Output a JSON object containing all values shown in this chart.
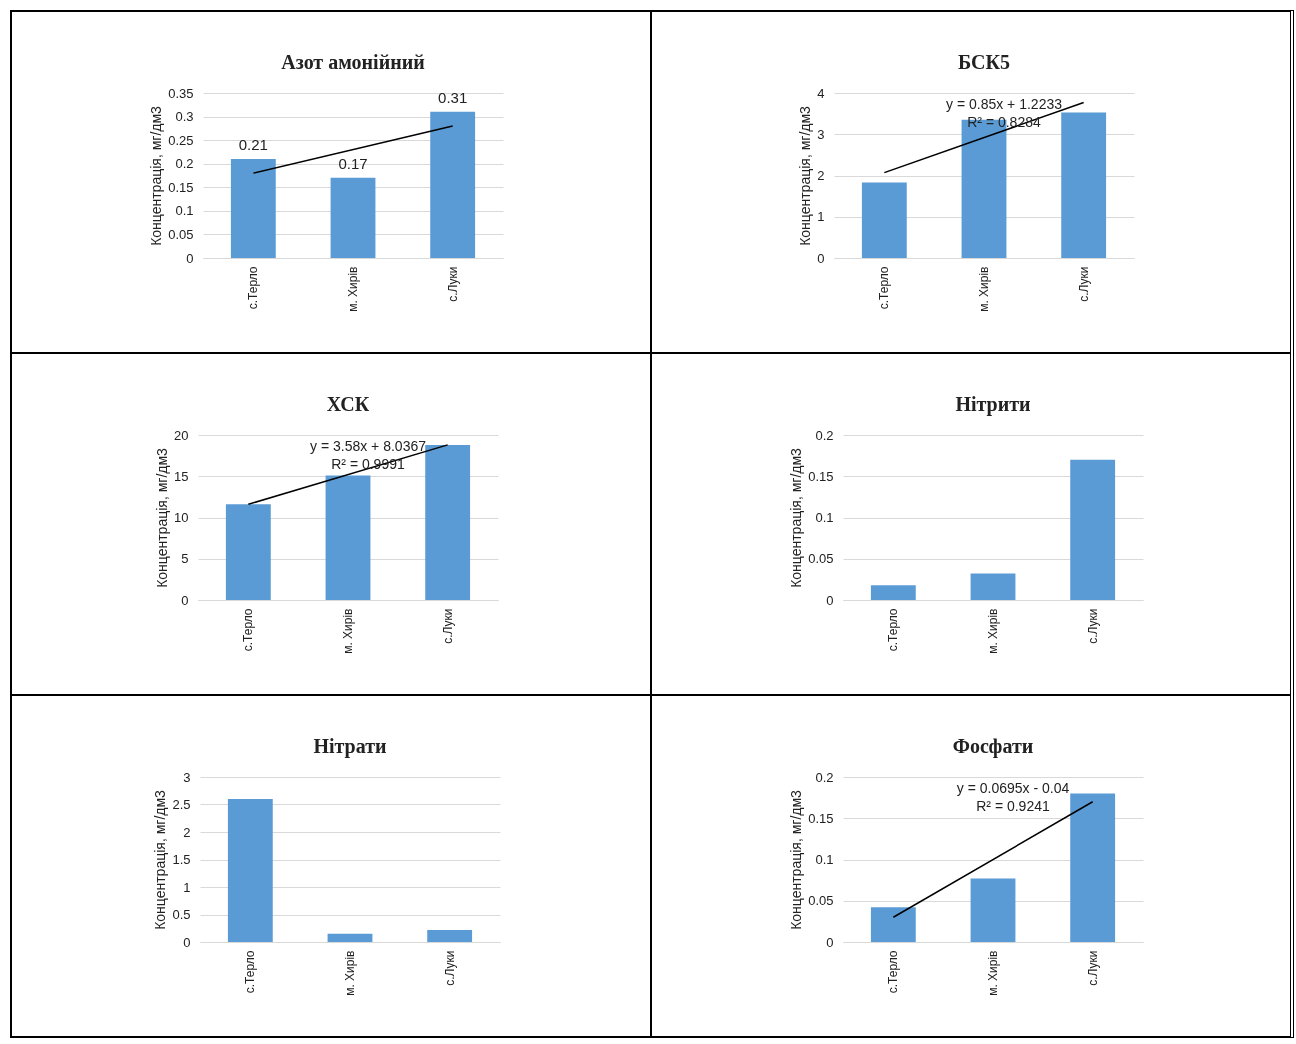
{
  "chart_data": [
    {
      "type": "bar",
      "title": "Азот амонійний",
      "ylabel": "Концентрація, мг/дм3",
      "categories": [
        "с.Терло",
        "м. Хирів",
        "с.Луки"
      ],
      "ylim": [
        0,
        0.35
      ],
      "yticks": [
        0,
        0.05,
        0.1,
        0.15,
        0.2,
        0.25,
        0.3,
        0.35
      ],
      "grid": "y",
      "series": [
        {
          "color": "#5b9bd5",
          "values": [
            0.21,
            0.17,
            0.31
          ],
          "value_labels": [
            "0.21",
            "0.17",
            "0.31"
          ]
        },
        {
          "type": "line",
          "color": "#000000",
          "x": [
            "с.Терло",
            "с.Луки"
          ],
          "values": [
            0.18,
            0.28
          ]
        }
      ]
    },
    {
      "type": "bar",
      "title": "БСК5",
      "ylabel": "Концентрація, мг/дм3",
      "categories": [
        "с.Терло",
        "м. Хирів",
        "с.Луки"
      ],
      "ylim": [
        0,
        4
      ],
      "yticks": [
        0,
        1,
        2,
        3,
        4
      ],
      "grid": "y",
      "annotations": [
        "y = 0.85x + 1.2233",
        "R² = 0.8284"
      ],
      "series": [
        {
          "color": "#5b9bd5",
          "values": [
            1.83,
            3.35,
            3.53
          ]
        },
        {
          "type": "line",
          "color": "#000000",
          "x": [
            "с.Терло",
            "с.Луки"
          ],
          "values": [
            2.07,
            3.77
          ]
        }
      ]
    },
    {
      "type": "bar",
      "title": "ХСК",
      "ylabel": "Концентрація, мг/дм3",
      "categories": [
        "с.Терло",
        "м. Хирів",
        "с.Луки"
      ],
      "ylim": [
        0,
        20
      ],
      "yticks": [
        0,
        5,
        10,
        15,
        20
      ],
      "grid": "y",
      "annotations": [
        "y = 3.58x + 8.0367",
        "R² = 0.9991"
      ],
      "series": [
        {
          "color": "#5b9bd5",
          "values": [
            11.6,
            15.1,
            18.8
          ]
        },
        {
          "type": "line",
          "color": "#000000",
          "x": [
            "с.Терло",
            "с.Луки"
          ],
          "values": [
            11.6,
            18.8
          ]
        }
      ]
    },
    {
      "type": "bar",
      "title": "Нітрити",
      "ylabel": "Концентрація, мг/дм3",
      "categories": [
        "с.Терло",
        "м. Хирів",
        "с.Луки"
      ],
      "ylim": [
        0,
        0.2
      ],
      "yticks": [
        0,
        0.05,
        0.1,
        0.15,
        0.2
      ],
      "grid": "y",
      "series": [
        {
          "color": "#5b9bd5",
          "values": [
            0.018,
            0.032,
            0.17
          ]
        }
      ]
    },
    {
      "type": "bar",
      "title": "Нітрати",
      "ylabel": "Концентрація, мг/дм3",
      "categories": [
        "с.Терло",
        "м. Хирів",
        "с.Луки"
      ],
      "ylim": [
        0,
        3
      ],
      "yticks": [
        0,
        0.5,
        1,
        1.5,
        2,
        2.5,
        3
      ],
      "grid": "y",
      "series": [
        {
          "color": "#5b9bd5",
          "values": [
            2.6,
            0.15,
            0.22
          ]
        }
      ]
    },
    {
      "type": "bar",
      "title": "Фосфати",
      "ylabel": "Концентрація, мг/дм3",
      "categories": [
        "с.Терло",
        "м. Хирів",
        "с.Луки"
      ],
      "ylim": [
        0,
        0.2
      ],
      "yticks": [
        0,
        0.05,
        0.1,
        0.15,
        0.2
      ],
      "grid": "y",
      "annotations": [
        "y = 0.0695x - 0.04",
        "R² = 0.9241"
      ],
      "series": [
        {
          "color": "#5b9bd5",
          "values": [
            0.042,
            0.077,
            0.18
          ]
        },
        {
          "type": "line",
          "color": "#000000",
          "x": [
            "с.Терло",
            "с.Луки"
          ],
          "values": [
            0.03,
            0.17
          ]
        }
      ]
    }
  ]
}
